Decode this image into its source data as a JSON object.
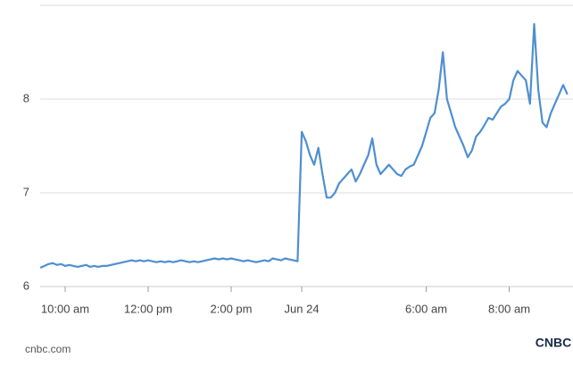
{
  "chart_data": {
    "type": "line",
    "categories": [
      null,
      null,
      null,
      null,
      null,
      null,
      "10:00 am",
      null,
      null,
      null,
      null,
      null,
      null,
      null,
      null,
      null,
      null,
      null,
      null,
      null,
      null,
      null,
      null,
      null,
      null,
      null,
      "12:00 pm",
      null,
      null,
      null,
      null,
      null,
      null,
      null,
      null,
      null,
      null,
      null,
      null,
      null,
      null,
      null,
      null,
      null,
      null,
      null,
      "2:00 pm",
      null,
      null,
      null,
      null,
      null,
      null,
      null,
      null,
      null,
      null,
      null,
      null,
      null,
      null,
      null,
      null,
      "Jun 24",
      null,
      null,
      null,
      null,
      null,
      null,
      null,
      null,
      null,
      null,
      null,
      null,
      null,
      null,
      null,
      null,
      null,
      null,
      null,
      null,
      null,
      null,
      null,
      null,
      null,
      null,
      null,
      null,
      null,
      "6:00 am",
      null,
      null,
      null,
      null,
      null,
      null,
      null,
      null,
      null,
      null,
      null,
      null,
      null,
      null,
      null,
      null,
      null,
      null,
      null,
      "8:00 am",
      null,
      null,
      null,
      null,
      null,
      null,
      null,
      null,
      null,
      null,
      null,
      null,
      null,
      null
    ],
    "series": [
      {
        "color": "#4f8fd1",
        "values": [
          6.2,
          6.22,
          6.24,
          6.25,
          6.23,
          6.24,
          6.22,
          6.23,
          6.22,
          6.21,
          6.22,
          6.23,
          6.21,
          6.22,
          6.21,
          6.22,
          6.22,
          6.23,
          6.24,
          6.25,
          6.26,
          6.27,
          6.28,
          6.27,
          6.28,
          6.27,
          6.28,
          6.27,
          6.26,
          6.27,
          6.26,
          6.27,
          6.26,
          6.27,
          6.28,
          6.27,
          6.26,
          6.27,
          6.26,
          6.27,
          6.28,
          6.29,
          6.3,
          6.29,
          6.3,
          6.29,
          6.3,
          6.29,
          6.28,
          6.27,
          6.28,
          6.27,
          6.26,
          6.27,
          6.28,
          6.27,
          6.3,
          6.29,
          6.28,
          6.3,
          6.29,
          6.28,
          6.27,
          7.65,
          7.55,
          7.4,
          7.3,
          7.48,
          7.2,
          6.95,
          6.95,
          7.0,
          7.1,
          7.15,
          7.2,
          7.25,
          7.12,
          7.2,
          7.3,
          7.4,
          7.58,
          7.3,
          7.2,
          7.25,
          7.3,
          7.25,
          7.2,
          7.18,
          7.25,
          7.28,
          7.3,
          7.4,
          7.5,
          7.65,
          7.8,
          7.85,
          8.1,
          8.5,
          8.0,
          7.85,
          7.7,
          7.6,
          7.5,
          7.38,
          7.45,
          7.6,
          7.65,
          7.72,
          7.8,
          7.78,
          7.85,
          7.92,
          7.95,
          8.0,
          8.2,
          8.3,
          8.25,
          8.2,
          7.95,
          8.8,
          8.1,
          7.75,
          7.7,
          7.85,
          7.95,
          8.05,
          8.15,
          8.05
        ]
      }
    ],
    "ylim": [
      6,
      9
    ],
    "yticks": [
      6,
      7,
      8
    ],
    "grid": true,
    "source": "cnbc.com",
    "logo": "CNBC"
  }
}
